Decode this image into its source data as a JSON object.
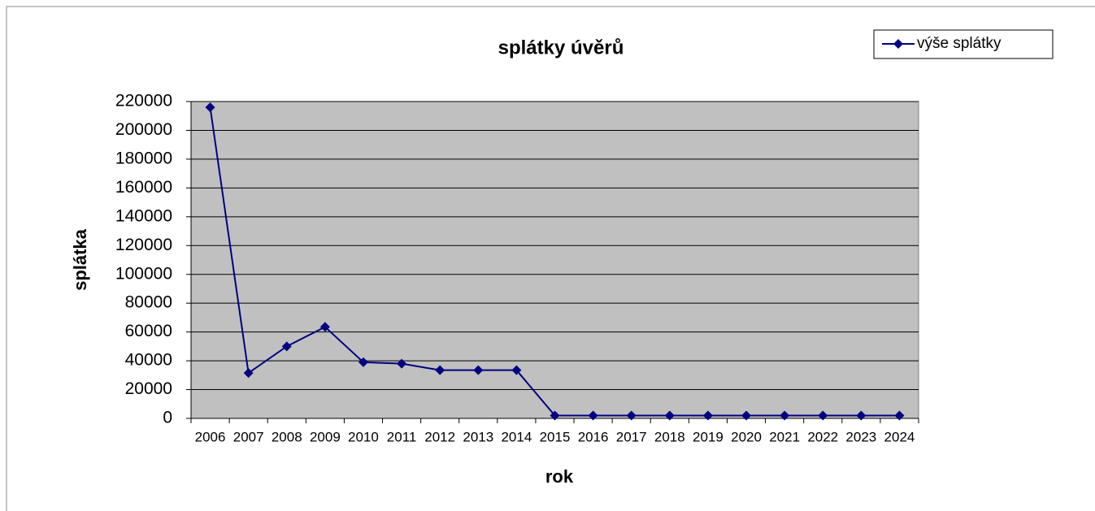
{
  "chart_data": {
    "type": "line",
    "title": "splátky úvěrů",
    "x_label": "rok",
    "y_label": "splátka",
    "categories": [
      "2006",
      "2007",
      "2008",
      "2009",
      "2010",
      "2011",
      "2012",
      "2013",
      "2014",
      "2015",
      "2016",
      "2017",
      "2018",
      "2019",
      "2020",
      "2021",
      "2022",
      "2023",
      "2024"
    ],
    "series": [
      {
        "name": "výše splátky",
        "color": "#000080",
        "values": [
          216000,
          31500,
          50000,
          63500,
          39000,
          38000,
          33500,
          33500,
          33500,
          2000,
          2000,
          2000,
          2000,
          2000,
          2000,
          2000,
          2000,
          2000,
          2000
        ]
      }
    ],
    "ylim": [
      0,
      220000
    ],
    "yticks": [
      0,
      20000,
      40000,
      60000,
      80000,
      100000,
      120000,
      140000,
      160000,
      180000,
      200000,
      220000
    ],
    "grid": true,
    "legend": "top-right"
  }
}
